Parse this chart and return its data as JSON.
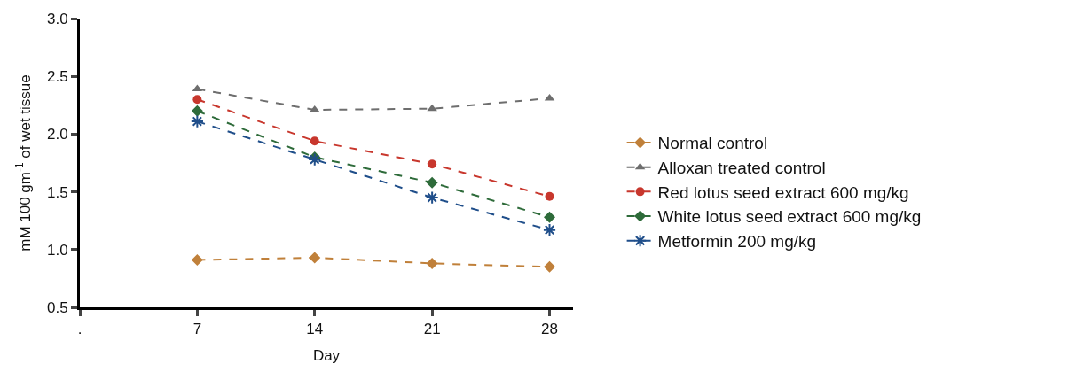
{
  "chart_data": {
    "type": "line",
    "xlabel": "Day",
    "ylabel": "mM 100 gm$^{-1}$ of wet tissue",
    "x": [
      7,
      14,
      21,
      28
    ],
    "xlim": [
      0,
      29.4
    ],
    "xticks": [
      {
        "value": 0,
        "label": "."
      },
      7,
      14,
      21,
      28
    ],
    "ylim": [
      0.5,
      3.0
    ],
    "yticks": [
      {
        "value": 0.5,
        "label": "0.5"
      },
      {
        "value": 1.0,
        "label": "1.0"
      },
      {
        "value": 1.5,
        "label": "1.5"
      },
      {
        "value": 2.0,
        "label": "2.0"
      },
      {
        "value": 2.5,
        "label": "2.5"
      },
      {
        "value": 3.0,
        "label": "3.0"
      }
    ],
    "legend": "right",
    "line_style": "dashed",
    "series": [
      {
        "name": "Normal control",
        "color": "#c0803a",
        "marker": "diamond",
        "values": [
          0.91,
          0.93,
          0.88,
          0.85
        ]
      },
      {
        "name": "Alloxan treated control",
        "color": "#6e6e6e",
        "marker": "triangle",
        "values": [
          2.39,
          2.21,
          2.22,
          2.31
        ]
      },
      {
        "name": "Red lotus seed extract 600 mg/kg",
        "color": "#c8372d",
        "marker": "circle",
        "values": [
          2.3,
          1.94,
          1.74,
          1.46
        ]
      },
      {
        "name": "White lotus seed extract 600 mg/kg",
        "color": "#2e6b3a",
        "marker": "diamond",
        "values": [
          2.2,
          1.8,
          1.58,
          1.28
        ]
      },
      {
        "name": "Metformin 200 mg/kg",
        "color": "#1f4e8a",
        "marker": "cross",
        "values": [
          2.11,
          1.78,
          1.45,
          1.17
        ]
      }
    ]
  }
}
